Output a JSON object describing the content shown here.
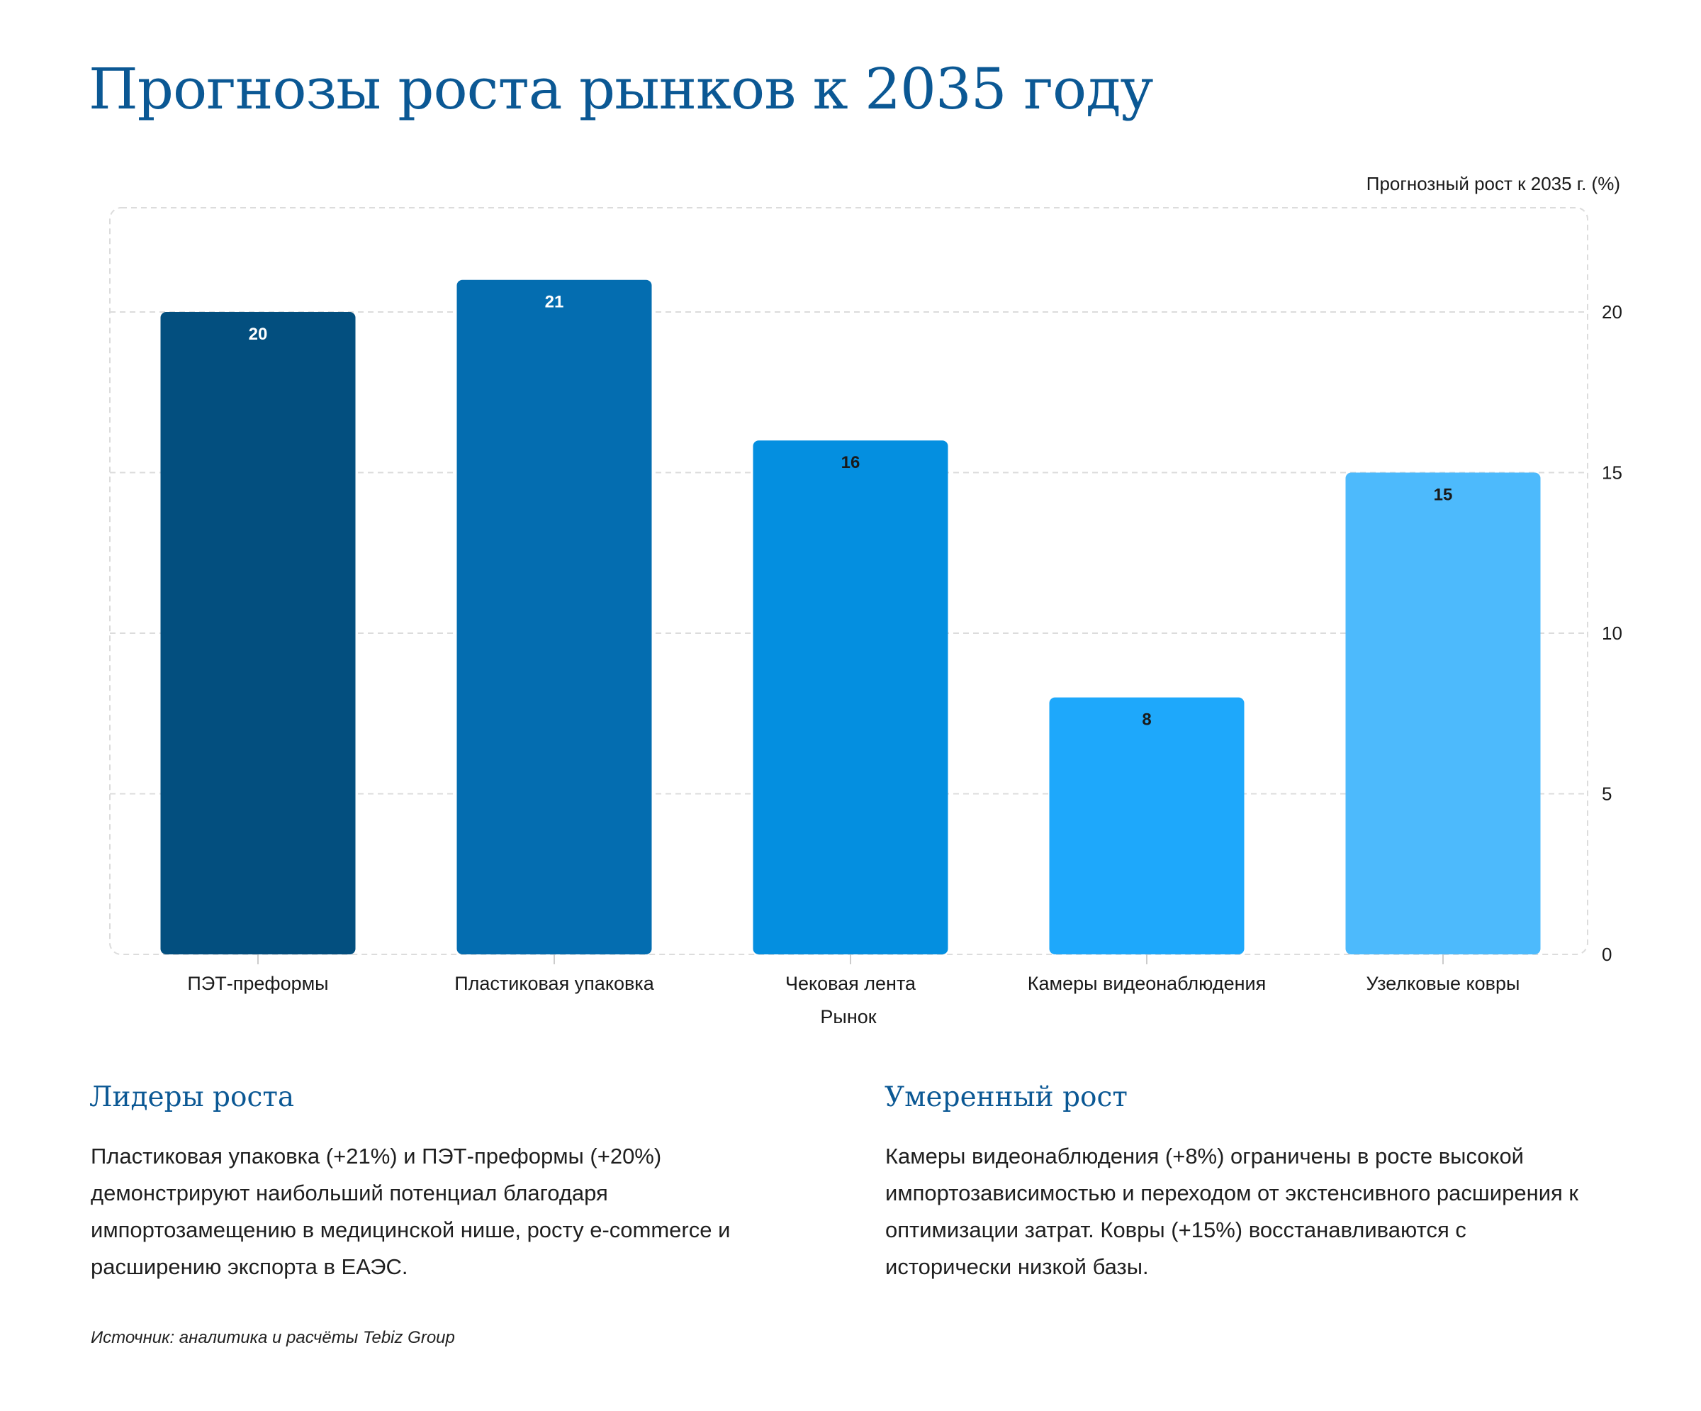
{
  "page": {
    "title": "Прогнозы роста рынков к 2035 году",
    "source": "Источник: аналитика и расчёты Tebiz Group"
  },
  "chart_data": {
    "type": "bar",
    "title": "",
    "xlabel": "Рынок",
    "ylabel": "Прогнозный рост к 2035 г. (%)",
    "y_axis_side": "right",
    "ylim": [
      0,
      22
    ],
    "yticks": [
      0,
      5,
      10,
      15,
      20
    ],
    "grid": true,
    "legend": "none",
    "categories": [
      "ПЭТ-преформы",
      "Пластиковая упаковка",
      "Чековая лента",
      "Камеры видеонаблюдения",
      "Узелковые ковры"
    ],
    "values": [
      20,
      21,
      16,
      8,
      15
    ],
    "data_labels": [
      "20",
      "21",
      "16",
      "8",
      "15"
    ],
    "colors": [
      "#034f7f",
      "#046db0",
      "#048fe0",
      "#1ea8fb",
      "#4dbafc"
    ],
    "label_colors": [
      "#ffffff",
      "#ffffff",
      "#1a1a1a",
      "#1a1a1a",
      "#1a1a1a"
    ]
  },
  "sections": [
    {
      "title": "Лидеры роста",
      "lines": [
        "Пластиковая упаковка (+21%) и ПЭТ-преформы (+20%)",
        "демонстрируют наибольший потенциал благодаря",
        "импортозамещению в медицинской нише, росту e-commerce и",
        "расширению экспорта в ЕАЭС."
      ]
    },
    {
      "title": "Умеренный рост",
      "lines": [
        "Камеры видеонаблюдения (+8%) ограничены в росте высокой",
        "импортозависимостью и переходом от экстенсивного расширения к",
        "оптимизации затрат. Ковры (+15%) восстанавливаются с",
        "исторически низкой базы."
      ]
    }
  ]
}
